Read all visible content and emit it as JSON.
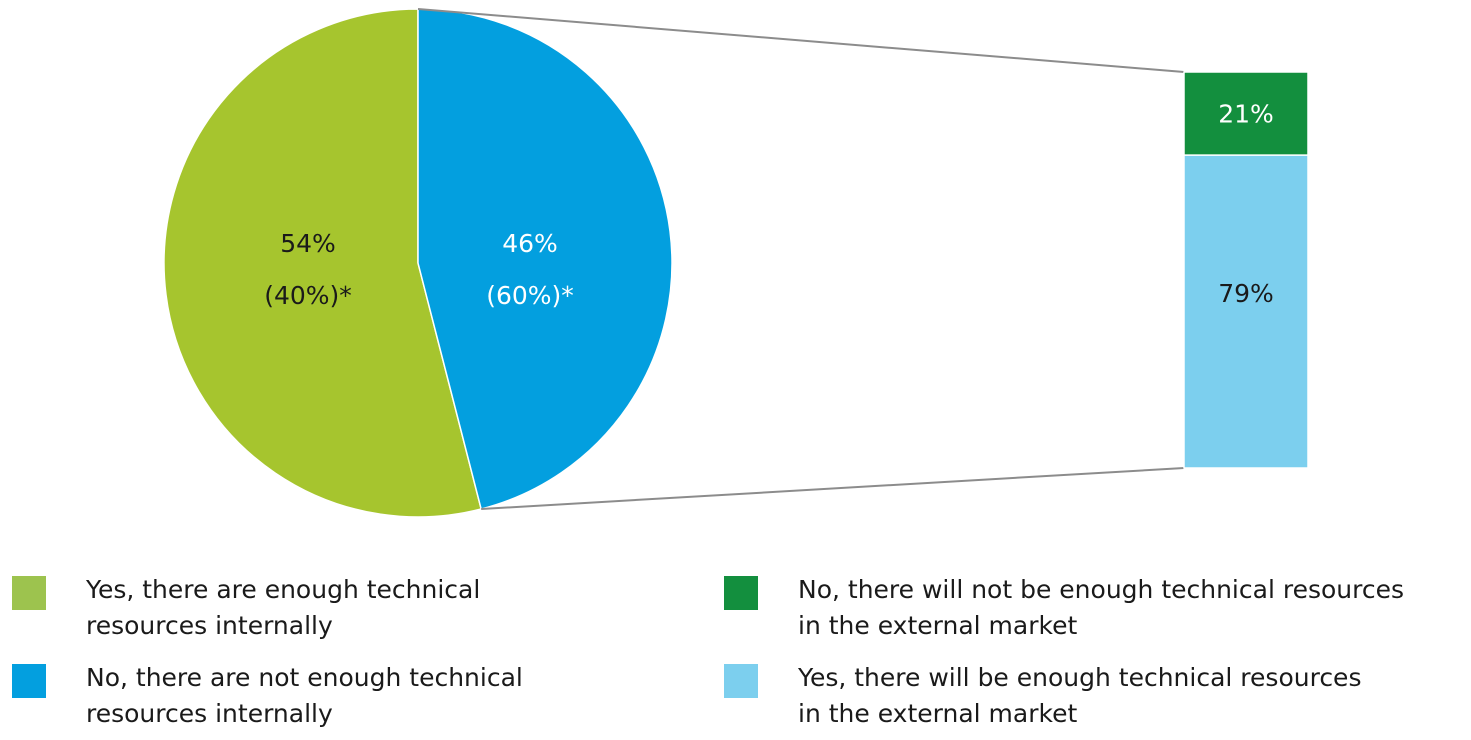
{
  "chart_data": {
    "type": "pie",
    "pie": {
      "slices": [
        {
          "label": "Yes, there are enough technical resources internally",
          "value": 54,
          "value_label": "54%",
          "prior_label": "(40%)*",
          "color": "#a6c52e"
        },
        {
          "label": "No, there are not enough technical resources internally",
          "value": 46,
          "value_label": "46%",
          "prior_label": "(60%)*",
          "color": "#039fdf"
        }
      ]
    },
    "breakdown_bar": {
      "type": "stacked-bar",
      "parent_slice": "No, there are not enough technical resources internally",
      "segments": [
        {
          "label": "No, there will not be enough technical resources in the external market",
          "value": 21,
          "value_label": "21%",
          "color": "#138f3e"
        },
        {
          "label": "Yes, there will be enough technical resources in the external market",
          "value": 79,
          "value_label": "79%",
          "color": "#7ccfee"
        }
      ]
    }
  },
  "legend": [
    {
      "line1": "Yes, there are enough technical",
      "line2": "resources internally",
      "color": "#9dc34e"
    },
    {
      "line1": "No, there are not enough technical",
      "line2": "resources internally",
      "color": "#039fdf"
    },
    {
      "line1": "No, there will not be enough technical resources",
      "line2": "in the external market",
      "color": "#138f3e"
    },
    {
      "line1": "Yes, there will be enough technical resources",
      "line2": "in the external market",
      "color": "#7ccfee"
    }
  ],
  "colors": {
    "connector": "#8c8c8c",
    "dark_text": "#1a1a1a",
    "light_text": "#ffffff"
  }
}
